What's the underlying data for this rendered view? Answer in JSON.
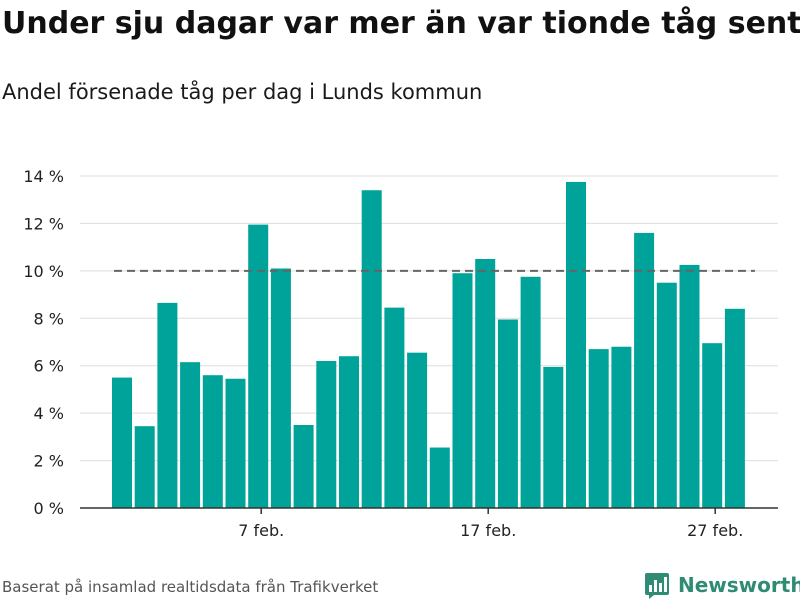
{
  "title": "Under sju dagar var mer än var tionde tåg sent",
  "subtitle": "Andel försenade tåg per dag i Lunds kommun",
  "source": "Baserat på insamlad realtidsdata från Trafikverket",
  "brand": {
    "name": "Newsworthy",
    "icon": "bar-chart-logo-icon",
    "color": "#2f8c74"
  },
  "colors": {
    "bar": "#00a39a",
    "reference_line": "#666666",
    "grid": "#dddddd",
    "axis": "#333333"
  },
  "chart_data": {
    "type": "bar",
    "x": [
      1,
      2,
      3,
      4,
      5,
      6,
      7,
      8,
      9,
      10,
      11,
      12,
      13,
      14,
      15,
      16,
      17,
      18,
      19,
      20,
      21,
      22,
      23,
      24,
      25,
      26,
      27,
      28
    ],
    "values": [
      5.5,
      3.45,
      8.65,
      6.15,
      5.6,
      5.45,
      11.95,
      10.1,
      3.5,
      6.2,
      6.4,
      13.4,
      8.45,
      6.55,
      2.55,
      9.9,
      10.5,
      7.95,
      9.75,
      5.95,
      13.75,
      6.7,
      6.8,
      11.6,
      9.5,
      10.25,
      6.95,
      8.4
    ],
    "xtick_labels": [
      "7 feb.",
      "17 feb.",
      "27 feb."
    ],
    "xtick_positions": [
      7,
      17,
      27
    ],
    "ytick_values": [
      0,
      2,
      4,
      6,
      8,
      10,
      12,
      14
    ],
    "ytick_labels": [
      "0 %",
      "2 %",
      "4 %",
      "6 %",
      "8 %",
      "10 %",
      "12 %",
      "14 %"
    ],
    "ylim": [
      0,
      14
    ],
    "reference_line": 10,
    "xlabel": "",
    "ylabel": "",
    "grid": true,
    "legend": false
  }
}
